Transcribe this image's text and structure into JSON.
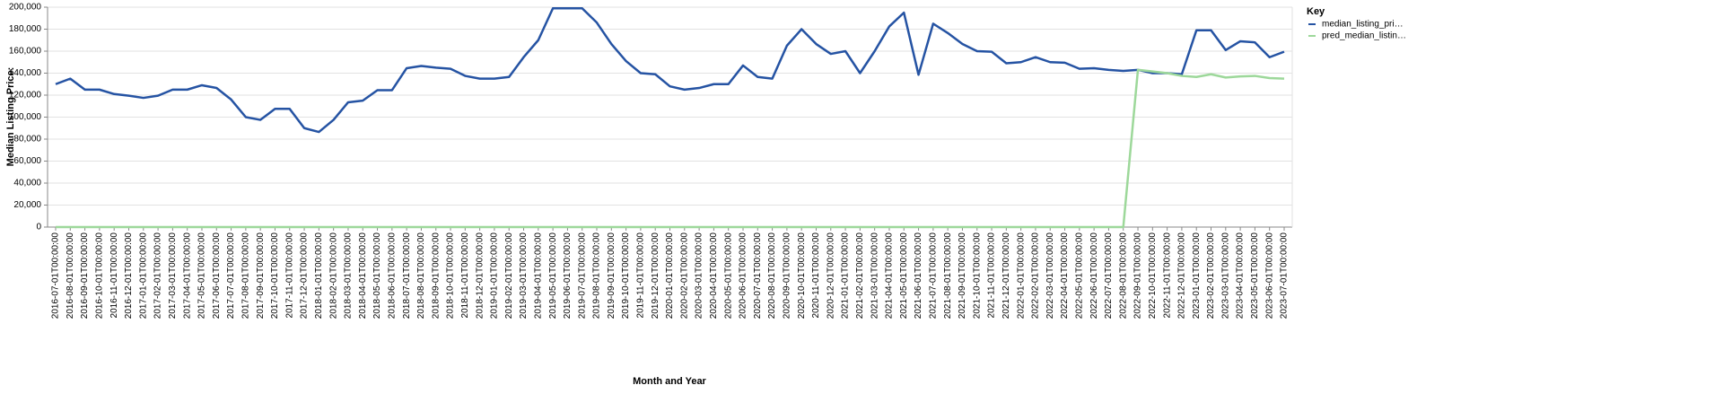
{
  "chart_data": {
    "type": "line",
    "x_label": "Month and Year",
    "y_label": "Median Listing Price:",
    "legend_title": "Key",
    "legend": "top-right",
    "grid": true,
    "categories": [
      "2016-07-01T00:00:00",
      "2016-08-01T00:00:00",
      "2016-09-01T00:00:00",
      "2016-10-01T00:00:00",
      "2016-11-01T00:00:00",
      "2016-12-01T00:00:00",
      "2017-01-01T00:00:00",
      "2017-02-01T00:00:00",
      "2017-03-01T00:00:00",
      "2017-04-01T00:00:00",
      "2017-05-01T00:00:00",
      "2017-06-01T00:00:00",
      "2017-07-01T00:00:00",
      "2017-08-01T00:00:00",
      "2017-09-01T00:00:00",
      "2017-10-01T00:00:00",
      "2017-11-01T00:00:00",
      "2017-12-01T00:00:00",
      "2018-01-01T00:00:00",
      "2018-02-01T00:00:00",
      "2018-03-01T00:00:00",
      "2018-04-01T00:00:00",
      "2018-05-01T00:00:00",
      "2018-06-01T00:00:00",
      "2018-07-01T00:00:00",
      "2018-08-01T00:00:00",
      "2018-09-01T00:00:00",
      "2018-10-01T00:00:00",
      "2018-11-01T00:00:00",
      "2018-12-01T00:00:00",
      "2019-01-01T00:00:00",
      "2019-02-01T00:00:00",
      "2019-03-01T00:00:00",
      "2019-04-01T00:00:00",
      "2019-05-01T00:00:00",
      "2019-06-01T00:00:00",
      "2019-07-01T00:00:00",
      "2019-08-01T00:00:00",
      "2019-09-01T00:00:00",
      "2019-10-01T00:00:00",
      "2019-11-01T00:00:00",
      "2019-12-01T00:00:00",
      "2020-01-01T00:00:00",
      "2020-02-01T00:00:00",
      "2020-03-01T00:00:00",
      "2020-04-01T00:00:00",
      "2020-05-01T00:00:00",
      "2020-06-01T00:00:00",
      "2020-07-01T00:00:00",
      "2020-08-01T00:00:00",
      "2020-09-01T00:00:00",
      "2020-10-01T00:00:00",
      "2020-11-01T00:00:00",
      "2020-12-01T00:00:00",
      "2021-01-01T00:00:00",
      "2021-02-01T00:00:00",
      "2021-03-01T00:00:00",
      "2021-04-01T00:00:00",
      "2021-05-01T00:00:00",
      "2021-06-01T00:00:00",
      "2021-07-01T00:00:00",
      "2021-08-01T00:00:00",
      "2021-09-01T00:00:00",
      "2021-10-01T00:00:00",
      "2021-11-01T00:00:00",
      "2021-12-01T00:00:00",
      "2022-01-01T00:00:00",
      "2022-02-01T00:00:00",
      "2022-03-01T00:00:00",
      "2022-04-01T00:00:00",
      "2022-05-01T00:00:00",
      "2022-06-01T00:00:00",
      "2022-07-01T00:00:00",
      "2022-08-01T00:00:00",
      "2022-09-01T00:00:00",
      "2022-10-01T00:00:00",
      "2022-11-01T00:00:00",
      "2022-12-01T00:00:00",
      "2023-01-01T00:00:00",
      "2023-02-01T00:00:00",
      "2023-03-01T00:00:00",
      "2023-04-01T00:00:00",
      "2023-05-01T00:00:00",
      "2023-06-01T00:00:00",
      "2023-07-01T00:00:00"
    ],
    "series": [
      {
        "name": "median_listing_pri…",
        "color": "#2553a3",
        "values": [
          130000,
          135000,
          125000,
          125000,
          121000,
          119500,
          117500,
          119500,
          125000,
          125000,
          129000,
          126500,
          116000,
          100000,
          97500,
          107500,
          107500,
          90000,
          86500,
          97500,
          113500,
          115000,
          124500,
          124500,
          144500,
          146500,
          145000,
          144000,
          137500,
          135000,
          135000,
          136500,
          154500,
          170000,
          199000,
          199000,
          199000,
          186000,
          166500,
          151000,
          140000,
          139000,
          128000,
          125000,
          126500,
          130000,
          130000,
          147000,
          136500,
          135000,
          165000,
          180000,
          166500,
          157500,
          160000,
          140000,
          160000,
          182500,
          195000,
          138500,
          185000,
          176500,
          166500,
          160000,
          159500,
          149000,
          150000,
          154500,
          150000,
          149500,
          144000,
          144500,
          143000,
          142000,
          143000,
          140000,
          140000,
          139000,
          179000,
          179000,
          161000,
          169000,
          168000,
          154500,
          159500
        ]
      },
      {
        "name": "pred_median_listin…",
        "color": "#9dd89a",
        "values": [
          0,
          0,
          0,
          0,
          0,
          0,
          0,
          0,
          0,
          0,
          0,
          0,
          0,
          0,
          0,
          0,
          0,
          0,
          0,
          0,
          0,
          0,
          0,
          0,
          0,
          0,
          0,
          0,
          0,
          0,
          0,
          0,
          0,
          0,
          0,
          0,
          0,
          0,
          0,
          0,
          0,
          0,
          0,
          0,
          0,
          0,
          0,
          0,
          0,
          0,
          0,
          0,
          0,
          0,
          0,
          0,
          0,
          0,
          0,
          0,
          0,
          0,
          0,
          0,
          0,
          0,
          0,
          0,
          0,
          0,
          0,
          0,
          0,
          0,
          143000,
          141500,
          140000,
          137500,
          136500,
          139000,
          136000,
          137000,
          137500,
          135500,
          135000
        ]
      }
    ],
    "ylim": [
      0,
      200000
    ],
    "yticks": [
      0,
      {
        "value": 20000,
        "label": "20,000"
      },
      {
        "value": 40000,
        "label": "40,000"
      },
      {
        "value": 60000,
        "label": "60,000"
      },
      {
        "value": 80000,
        "label": "80,000"
      },
      {
        "value": 100000,
        "label": "100,000"
      },
      {
        "value": 120000,
        "label": "120,000"
      },
      {
        "value": 140000,
        "label": "140,000"
      },
      {
        "value": 160000,
        "label": "160,000"
      },
      {
        "value": 180000,
        "label": "180,000"
      },
      {
        "value": 200000,
        "label": "200,000"
      }
    ]
  }
}
